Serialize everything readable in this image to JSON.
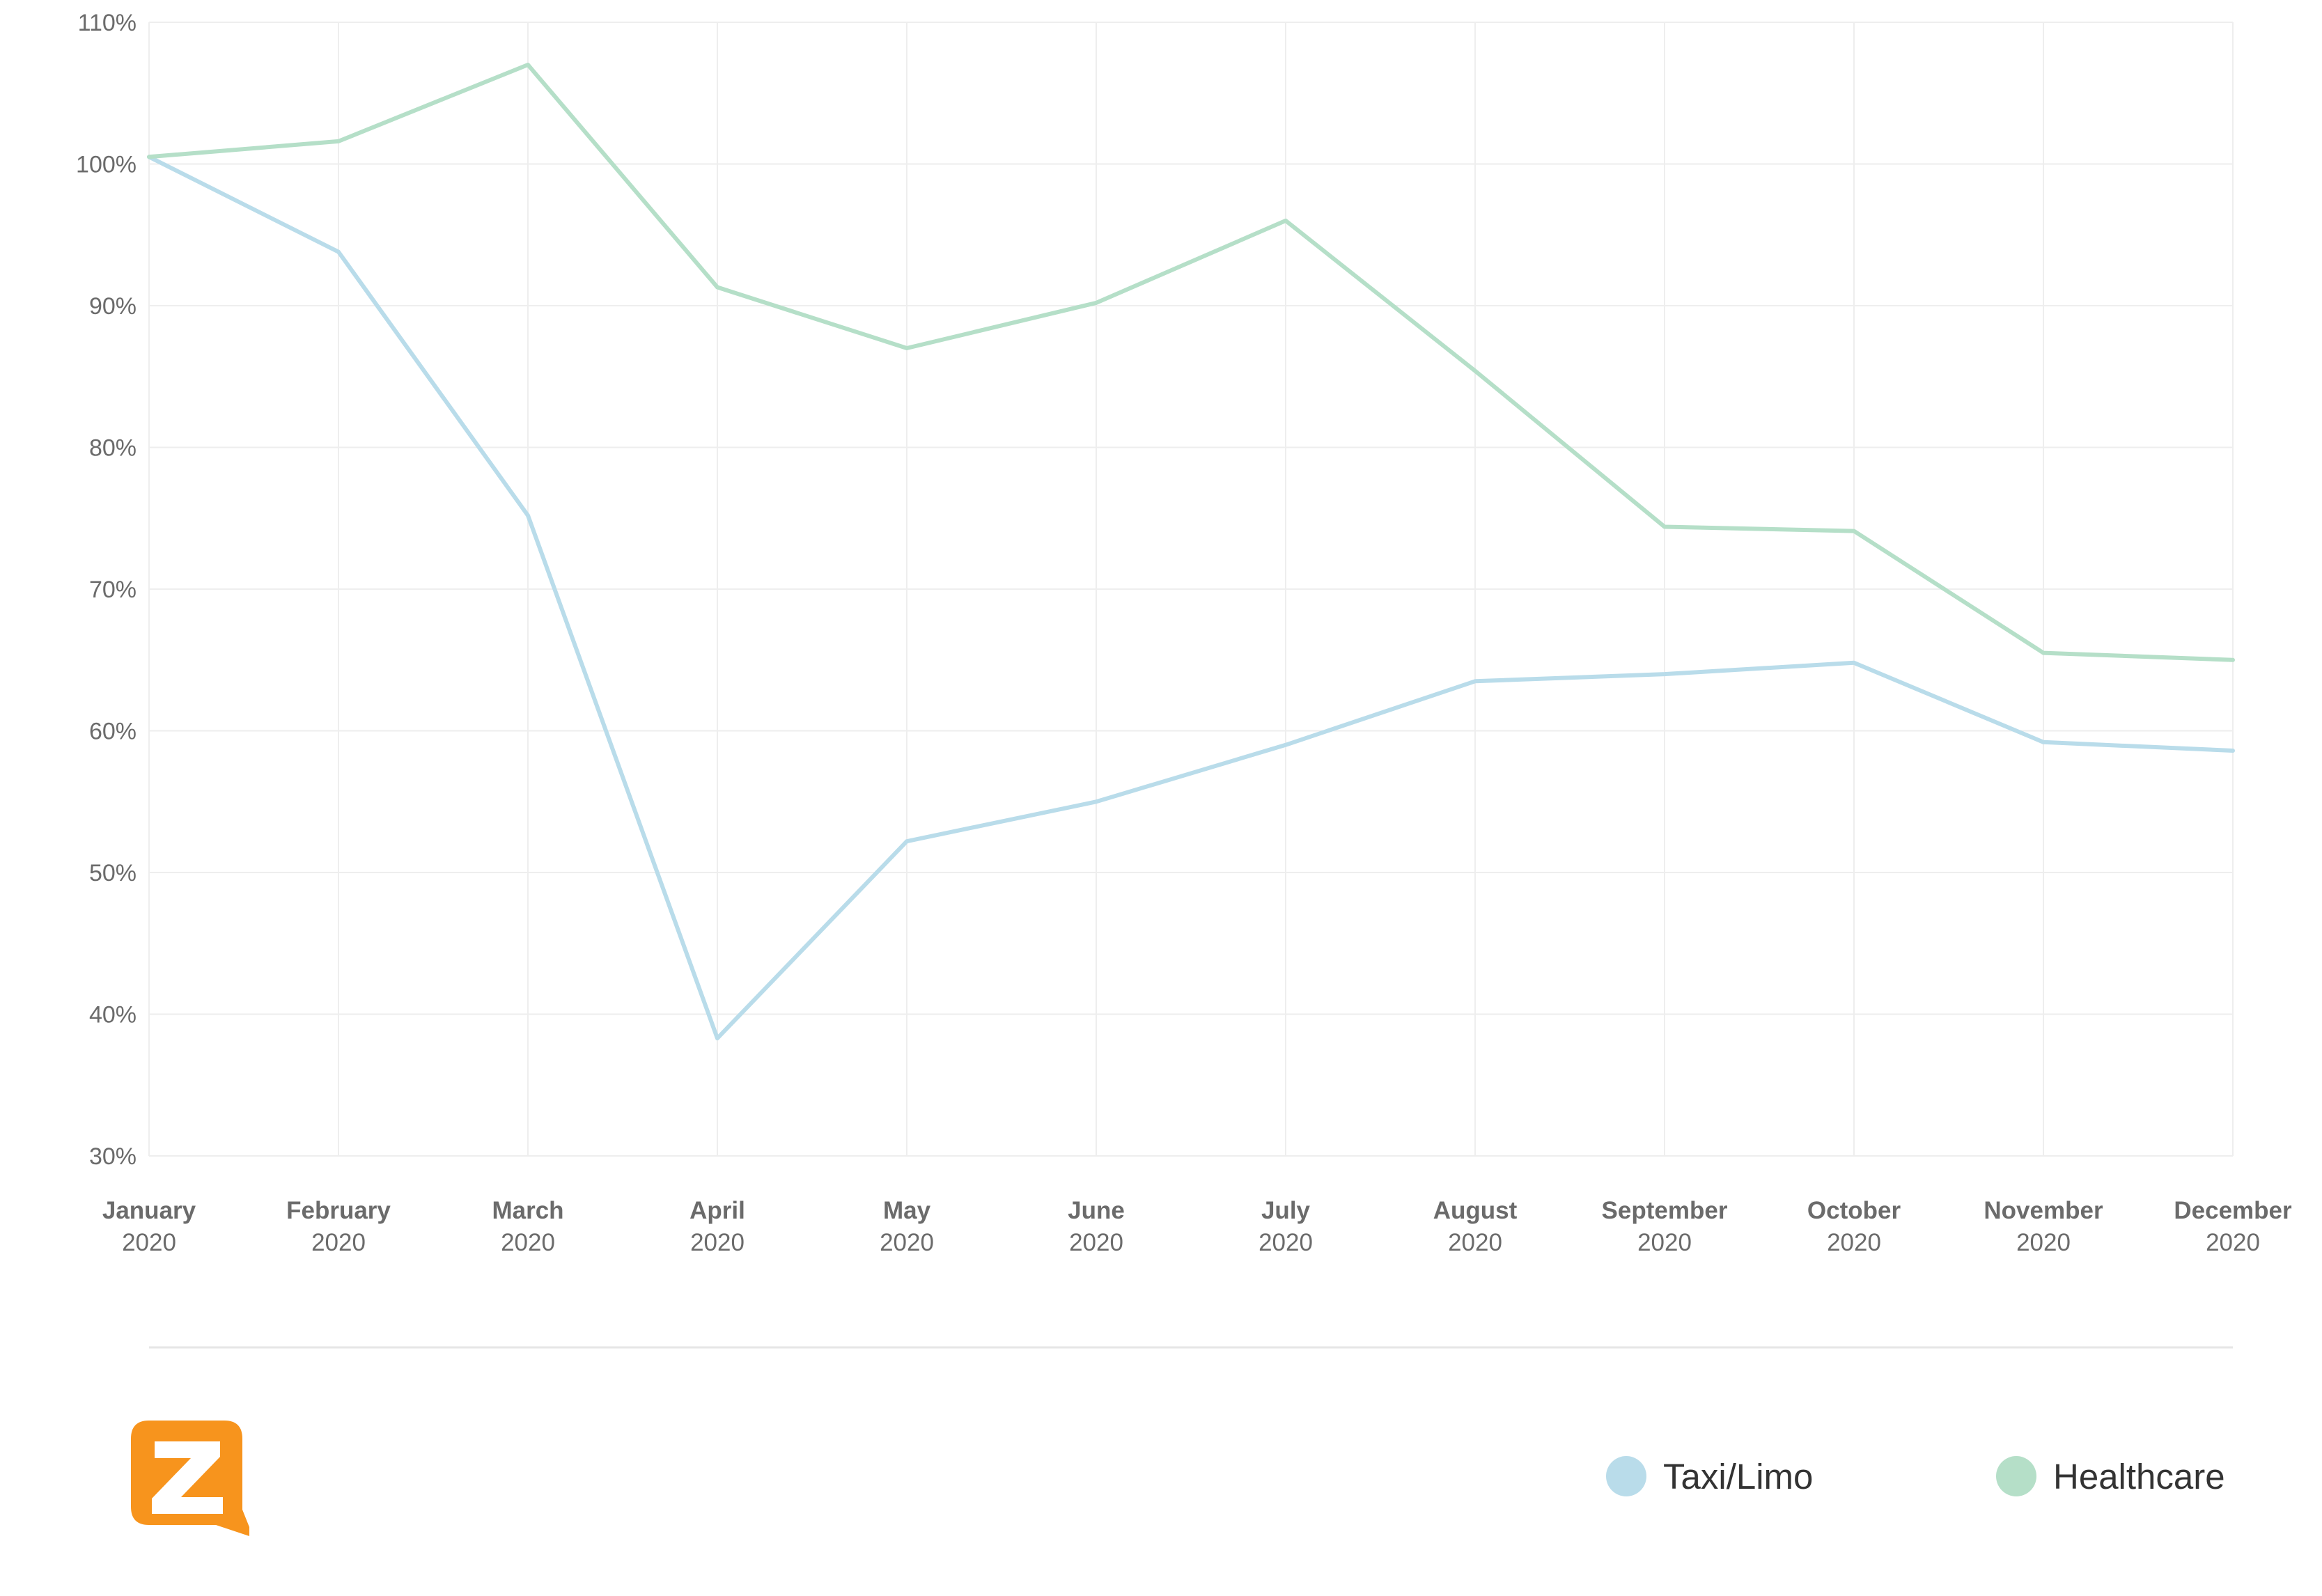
{
  "colors": {
    "taxi": "#b9dcea",
    "healthcare": "#b5dfc8",
    "grid": "#eeeeee",
    "axis_text": "#6b6b6b",
    "logo": "#f7941d"
  },
  "logo": {
    "icon": "z-speech-bubble-logo"
  },
  "chart_data": {
    "type": "line",
    "categories": [
      "January",
      "February",
      "March",
      "April",
      "May",
      "June",
      "July",
      "August",
      "September",
      "October",
      "November",
      "December"
    ],
    "category_years": [
      "2020",
      "2020",
      "2020",
      "2020",
      "2020",
      "2020",
      "2020",
      "2020",
      "2020",
      "2020",
      "2020",
      "2020"
    ],
    "y_ticks": [
      "110%",
      "100%",
      "90%",
      "80%",
      "70%",
      "60%",
      "50%",
      "40%",
      "30%"
    ],
    "ylim": [
      30,
      110
    ],
    "y_unit": "%",
    "grid": true,
    "legend_position": "bottom-right",
    "series": [
      {
        "name": "Taxi/Limo",
        "values": [
          100.5,
          93.8,
          75.2,
          38.3,
          52.2,
          55,
          59,
          63.5,
          64,
          64.8,
          59.2,
          58.6
        ]
      },
      {
        "name": "Healthcare",
        "values": [
          100.5,
          101.6,
          107,
          91.3,
          87,
          90.2,
          96,
          85.4,
          74.4,
          74.1,
          65.5,
          65
        ]
      }
    ]
  }
}
